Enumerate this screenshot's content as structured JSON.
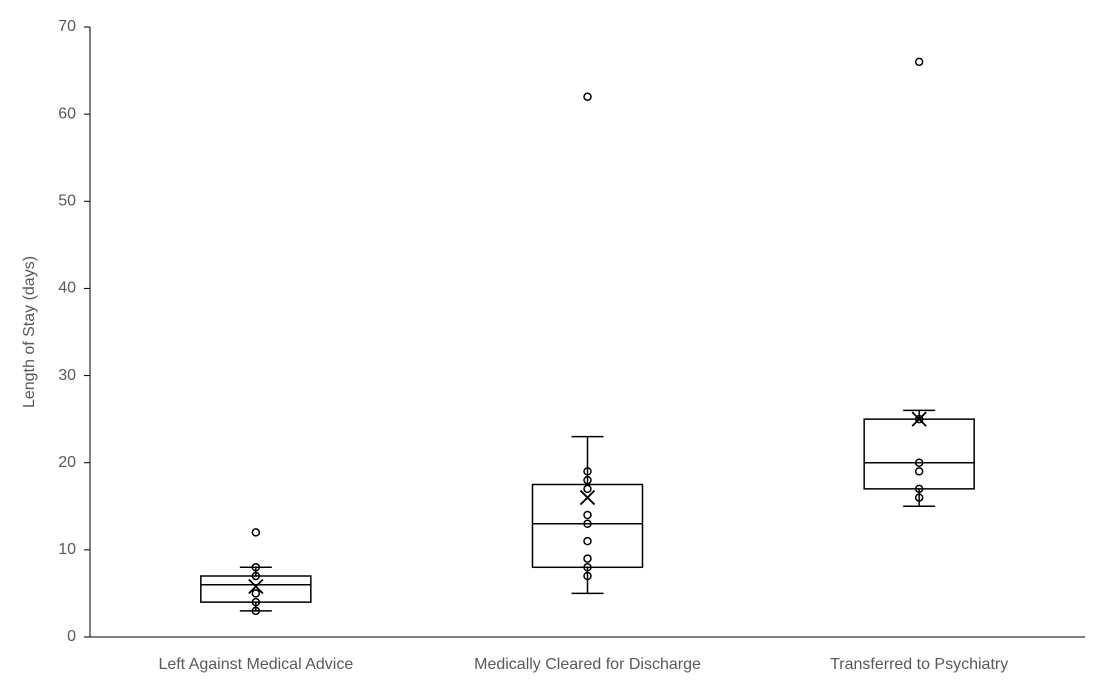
{
  "chart_data": {
    "type": "box",
    "y_label": "Length of Stay (days)",
    "categories": [
      "Left Against Medical Advice",
      "Medically Cleared for Discharge",
      "Transferred to Psychiatry"
    ],
    "boxes": [
      {
        "whisker_low": 3,
        "q1": 4,
        "median": 6,
        "q3": 7,
        "whisker_high": 8,
        "mean": 5.8,
        "points": [
          3,
          4,
          5,
          7,
          8,
          12
        ]
      },
      {
        "whisker_low": 5,
        "q1": 8,
        "median": 13,
        "q3": 17.5,
        "whisker_high": 23,
        "mean": 16,
        "points": [
          7,
          8,
          9,
          11,
          13,
          14,
          17,
          18,
          19,
          62
        ]
      },
      {
        "whisker_low": 15,
        "q1": 17,
        "median": 20,
        "q3": 25,
        "whisker_high": 26,
        "mean": 25,
        "points": [
          16,
          17,
          19,
          20,
          25,
          66
        ]
      }
    ],
    "color": "#000000",
    "ylim": [
      0,
      70
    ],
    "yticks": [
      0,
      10,
      20,
      30,
      40,
      50,
      60,
      70
    ]
  }
}
